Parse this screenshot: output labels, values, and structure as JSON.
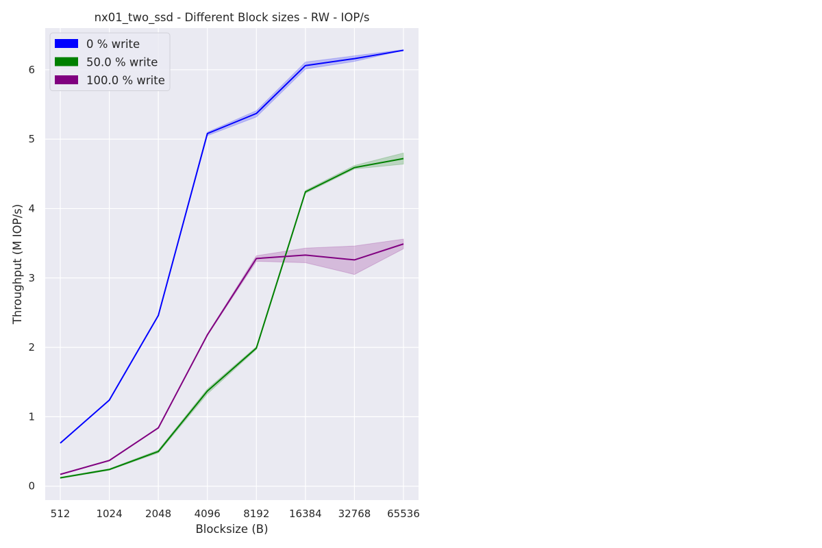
{
  "chart_data": {
    "type": "line",
    "title": "nx01_two_ssd - Different Block sizes - RW - IOP/s",
    "xlabel": "Blocksize (B)",
    "ylabel": "Throughput (M IOP/s)",
    "categories": [
      "512",
      "1024",
      "2048",
      "4096",
      "8192",
      "16384",
      "32768",
      "65536"
    ],
    "ylim": [
      -0.2,
      6.6
    ],
    "yticks": [
      0,
      1,
      2,
      3,
      4,
      5,
      6
    ],
    "grid": true,
    "legend_position": "top-left",
    "series": [
      {
        "name": "0 % write",
        "color": "#0000ff",
        "values": [
          0.62,
          1.24,
          2.46,
          5.08,
          5.37,
          6.06,
          6.16,
          6.28
        ],
        "lower": [
          0.62,
          1.24,
          2.46,
          5.05,
          5.32,
          6.01,
          6.12,
          6.28
        ],
        "upper": [
          0.62,
          1.24,
          2.46,
          5.1,
          5.41,
          6.11,
          6.2,
          6.29
        ]
      },
      {
        "name": "50.0 % write",
        "color": "#008000",
        "values": [
          0.12,
          0.24,
          0.5,
          1.37,
          1.99,
          4.24,
          4.59,
          4.72
        ],
        "lower": [
          0.11,
          0.23,
          0.48,
          1.33,
          1.97,
          4.22,
          4.57,
          4.64
        ],
        "upper": [
          0.13,
          0.25,
          0.52,
          1.4,
          2.01,
          4.26,
          4.62,
          4.8
        ]
      },
      {
        "name": "100.0 % write",
        "color": "#800080",
        "values": [
          0.17,
          0.37,
          0.84,
          2.18,
          3.28,
          3.33,
          3.26,
          3.49
        ],
        "lower": [
          0.17,
          0.37,
          0.84,
          2.17,
          3.24,
          3.22,
          3.05,
          3.42
        ],
        "upper": [
          0.17,
          0.37,
          0.84,
          2.19,
          3.32,
          3.43,
          3.46,
          3.56
        ]
      }
    ]
  }
}
